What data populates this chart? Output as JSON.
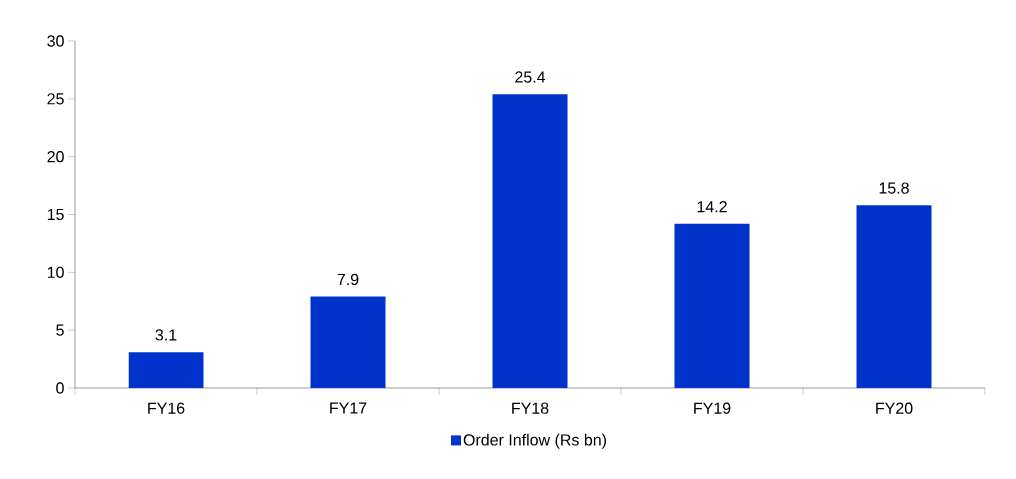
{
  "chart_data": {
    "type": "bar",
    "categories": [
      "FY16",
      "FY17",
      "FY18",
      "FY19",
      "FY20"
    ],
    "series": [
      {
        "name": "Order Inflow (Rs bn)",
        "color": "#0033cc",
        "values": [
          3.1,
          7.9,
          25.4,
          14.2,
          15.8
        ]
      }
    ],
    "ylim": [
      0,
      30
    ],
    "yticks": [
      0,
      5,
      10,
      15,
      20,
      25,
      30
    ],
    "data_labels": true,
    "grid": false,
    "legend": "bottom"
  }
}
